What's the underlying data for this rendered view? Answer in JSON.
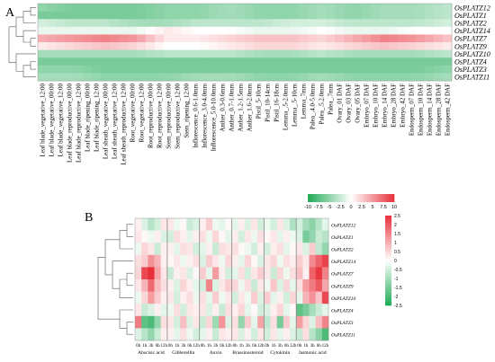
{
  "chart_data": [
    {
      "panel": "A",
      "type": "heatmap",
      "rows": [
        "OsPLATZ12",
        "OsPLATZ1",
        "OsPLATZ2",
        "OsPLATZ14",
        "OsPLATZ7",
        "OsPLATZ9",
        "OsPLATZ10",
        "OsPLATZ4",
        "OsPLATZ3",
        "OsPLATZ11"
      ],
      "columns": [
        "Leaf blade_vegetative_12:00",
        "Leaf blade_vegetative_00:00",
        "Leaf blade_vegetative_12:00",
        "Leaf blade_reproductive_00:00",
        "Leaf blade_reproductive_12:00",
        "Leaf blade_ripening_00:00",
        "Leaf blade_ripening_12:00",
        "Leaf sheath_vegetative_00:00",
        "Leaf sheath_vegetative_12:00",
        "Leaf sheath_reproductive_12:00",
        "Root_vegetative_00:00",
        "Root_vegetative_12:00",
        "Root_reproductive_00:00",
        "Root_reproductive_12:00",
        "Stem_reproductive_00:00",
        "Stem_reproductive_12:00",
        "Stem_ripening_12:00",
        "Inflorescence_0.6-1.0mm",
        "Inflorescence_3.0-4.0mm",
        "Inflorescence_5.0-10.0mm",
        "Anther_0.3-0.6mm",
        "Anther_0.7-1.0mm",
        "Anther_1.2-1.5mm",
        "Anther_1.6-2.0mm",
        "Pistil_5-10cm",
        "Pistil_10-14cm",
        "Pistil_16-18cm",
        "Lemma_.5-2.0mm",
        "Lemma_.5-10cm",
        "Lemma_7mm",
        "Palea_.4.0-5.0mm",
        "Palea_.5.2.0mm",
        "Palea_.7mm",
        "Ovary_01 DAF",
        "Ovary_03 DAF",
        "Ovary_05 DAF",
        "Embryo_07 DAF",
        "Embryo_10 DAF",
        "Embryo_14 DAF",
        "Embryo_28 DAF",
        "Embryo_42 DAF",
        "Endosperm_07 DAF",
        "Endosperm_10 DAF",
        "Endosperm_14 DAF",
        "Endosperm_28 DAF",
        "Endosperm_42 DAF"
      ],
      "row_profiles": [
        [
          -5,
          -6,
          -6,
          -6,
          -5,
          -5,
          -4,
          -5,
          -5,
          -4,
          -5,
          -4,
          -4,
          -3
        ],
        [
          -6,
          -6,
          -6,
          -6,
          -5,
          -5,
          -4,
          -5,
          -5,
          -4,
          -5,
          -4,
          -4,
          -3
        ],
        [
          -2,
          -3,
          -3,
          -4,
          -4,
          -3,
          -3,
          -3,
          -2,
          -2,
          -3,
          -3,
          -3,
          -2
        ],
        [
          -1,
          -1,
          -1,
          -1,
          1,
          0,
          0,
          -1,
          -1,
          0,
          -1,
          -1,
          0,
          0
        ],
        [
          4,
          5,
          6,
          5,
          1,
          1,
          2,
          3,
          3,
          2,
          4,
          6,
          5,
          3
        ],
        [
          1,
          2,
          3,
          2,
          0,
          0,
          1,
          2,
          2,
          1,
          2,
          3,
          2,
          1
        ],
        [
          -4,
          -4,
          -4,
          -4,
          -3,
          -3,
          -3,
          -4,
          -4,
          -3,
          -4,
          -4,
          -4,
          -3
        ],
        [
          -6,
          -6,
          -6,
          -6,
          -6,
          -6,
          -6,
          -6,
          -6,
          -6,
          -6,
          -6,
          -6,
          -6
        ],
        [
          -5,
          -5,
          -6,
          -6,
          -6,
          -6,
          -6,
          -6,
          -6,
          -6,
          -6,
          -6,
          -6,
          -5
        ],
        [
          -4,
          -4,
          -5,
          -5,
          -5,
          -4,
          -4,
          -5,
          -5,
          -4,
          -5,
          -5,
          -5,
          -4
        ]
      ],
      "color_scale": {
        "min": -10,
        "max": 10,
        "ticks": [
          "-10",
          "-7.5",
          "-5",
          "-2.5",
          "0",
          "2.5",
          "5",
          "7.5",
          "10"
        ],
        "low_color": "#1faa55",
        "mid_color": "#ffffff",
        "high_color": "#e8303a"
      }
    },
    {
      "panel": "B",
      "type": "heatmap",
      "rows": [
        "OsPLATZ12",
        "OsPLATZ1",
        "OsPLATZ2",
        "OsPLATZ14",
        "OsPLATZ7",
        "OsPLATZ9",
        "OsPLATZ10",
        "OsPLATZ4",
        "OsPLATZ3",
        "OsPLATZ11"
      ],
      "treatments": [
        "Abscisic acid",
        "Gibberellin",
        "Auxin",
        "Brassinosteroid",
        "Cytokinin",
        "Jasmonic acid"
      ],
      "timepoints": [
        "0h",
        "1h",
        "3h",
        "6h",
        "12h"
      ],
      "values": [
        [
          [
            0.2,
            -0.4,
            -0.8,
            -0.5,
            0.3
          ],
          [
            0.3,
            -0.2,
            0.1,
            -0.6,
            -0.4
          ],
          [
            0.2,
            0.6,
            -0.2,
            -0.3,
            0.1
          ],
          [
            -0.3,
            0.2,
            -0.4,
            0.3,
            -0.5
          ],
          [
            -0.2,
            -0.5,
            0.3,
            -0.4,
            -0.9
          ],
          [
            -0.5,
            -1.0,
            -1.3,
            -0.8,
            -0.3
          ]
        ],
        [
          [
            0.3,
            0.1,
            -0.2,
            0.2,
            -0.4
          ],
          [
            -0.5,
            0.4,
            0.2,
            -0.3,
            0.2
          ],
          [
            0.4,
            -0.2,
            0.5,
            0.1,
            -0.3
          ],
          [
            0.2,
            -0.5,
            0.3,
            -0.2,
            0.4
          ],
          [
            0.1,
            0.3,
            -0.3,
            0.2,
            -0.2
          ],
          [
            -0.4,
            -1.5,
            -1.2,
            -0.6,
            -0.8
          ]
        ],
        [
          [
            -0.2,
            0.5,
            0.3,
            -0.6,
            0.2
          ],
          [
            0.2,
            -0.3,
            0.4,
            0.3,
            -0.5
          ],
          [
            -0.3,
            0.2,
            -0.6,
            0.4,
            0.3
          ],
          [
            0.4,
            0.1,
            -0.2,
            -0.5,
            0.2
          ],
          [
            -0.5,
            0.2,
            0.4,
            -0.3,
            0.1
          ],
          [
            0.3,
            -0.4,
            0.6,
            -0.7,
            -1.2
          ]
        ],
        [
          [
            0.4,
            0.6,
            1.3,
            0.9,
            0.2
          ],
          [
            0.1,
            0.3,
            -0.2,
            0.2,
            0.4
          ],
          [
            -0.4,
            0.6,
            0.3,
            -0.2,
            0.5
          ],
          [
            0.2,
            -0.3,
            0.5,
            0.1,
            -0.4
          ],
          [
            0.3,
            0.5,
            -0.2,
            0.4,
            0.2
          ],
          [
            0.6,
            0.3,
            1.4,
            1.9,
            2.3
          ]
        ],
        [
          [
            0.5,
            2.2,
            2.6,
            1.1,
            0.3
          ],
          [
            -0.6,
            0.2,
            0.3,
            -0.4,
            0.1
          ],
          [
            0.6,
            -0.3,
            1.2,
            0.2,
            -0.5
          ],
          [
            -0.3,
            0.4,
            -0.5,
            0.3,
            0.6
          ],
          [
            0.3,
            -0.6,
            0.5,
            -0.2,
            0.4
          ],
          [
            0.8,
            0.2,
            1.9,
            2.4,
            1.5
          ]
        ],
        [
          [
            0.3,
            0.9,
            1.8,
            0.8,
            0.4
          ],
          [
            0.2,
            -0.4,
            0.5,
            0.2,
            -0.3
          ],
          [
            -0.5,
            1.5,
            -0.4,
            0.3,
            0.6
          ],
          [
            0.5,
            -0.2,
            0.4,
            -0.6,
            0.3
          ],
          [
            -0.2,
            0.7,
            -0.4,
            0.5,
            -0.3
          ],
          [
            0.4,
            1.2,
            1.6,
            2.0,
            1.1
          ]
        ],
        [
          [
            -0.2,
            0.5,
            1.2,
            0.6,
            0.2
          ],
          [
            0.3,
            -0.5,
            0.2,
            0.4,
            -0.2
          ],
          [
            0.4,
            -0.3,
            0.6,
            -0.2,
            0.3
          ],
          [
            -0.5,
            0.3,
            -0.2,
            0.6,
            -0.4
          ],
          [
            0.6,
            -0.3,
            0.2,
            -0.5,
            0.5
          ],
          [
            -0.3,
            0.9,
            1.3,
            0.7,
            2.2
          ]
        ],
        [
          [
            0.3,
            -0.6,
            -0.4,
            0.2,
            -0.3
          ],
          [
            -0.2,
            0.4,
            -0.5,
            0.3,
            0.2
          ],
          [
            0.3,
            -0.4,
            0.2,
            -0.6,
            0.4
          ],
          [
            0.2,
            0.5,
            -0.3,
            0.1,
            -0.5
          ],
          [
            -0.4,
            0.2,
            0.5,
            -0.3,
            0.1
          ],
          [
            -1.8,
            -1.5,
            -1.0,
            -0.6,
            -0.3
          ]
        ],
        [
          [
            1.6,
            -1.8,
            -2.0,
            -1.2,
            0.4
          ],
          [
            0.3,
            -0.5,
            0.8,
            -0.4,
            0.3
          ],
          [
            -0.6,
            0.5,
            -1.1,
            1.3,
            -0.4
          ],
          [
            0.4,
            -1.2,
            0.6,
            -0.3,
            1.1
          ],
          [
            -0.7,
            0.4,
            -1.5,
            0.6,
            -0.3
          ],
          [
            1.2,
            0.5,
            -0.4,
            0.8,
            1.5
          ]
        ],
        [
          [
            -0.4,
            -0.8,
            -1.2,
            -0.6,
            0.2
          ],
          [
            0.2,
            -0.3,
            0.4,
            -0.2,
            -0.5
          ],
          [
            -0.3,
            0.2,
            -0.6,
            0.3,
            0.2
          ],
          [
            0.3,
            -0.4,
            0.2,
            -0.5,
            0.3
          ],
          [
            -0.5,
            0.3,
            -0.3,
            0.2,
            -0.4
          ],
          [
            -0.6,
            0.4,
            -0.8,
            -1.3,
            -2.0
          ]
        ]
      ],
      "color_scale": {
        "min": -2.5,
        "max": 2.5,
        "ticks": [
          "2.5",
          "2",
          "1.5",
          "1",
          "0.5",
          "0",
          "-0.5",
          "-1",
          "-1.5",
          "-2",
          "-2.5"
        ],
        "low_color": "#1faa55",
        "mid_color": "#ffffff",
        "high_color": "#e8303a"
      }
    }
  ],
  "labels": {
    "panel_a": "A",
    "panel_b": "B"
  }
}
